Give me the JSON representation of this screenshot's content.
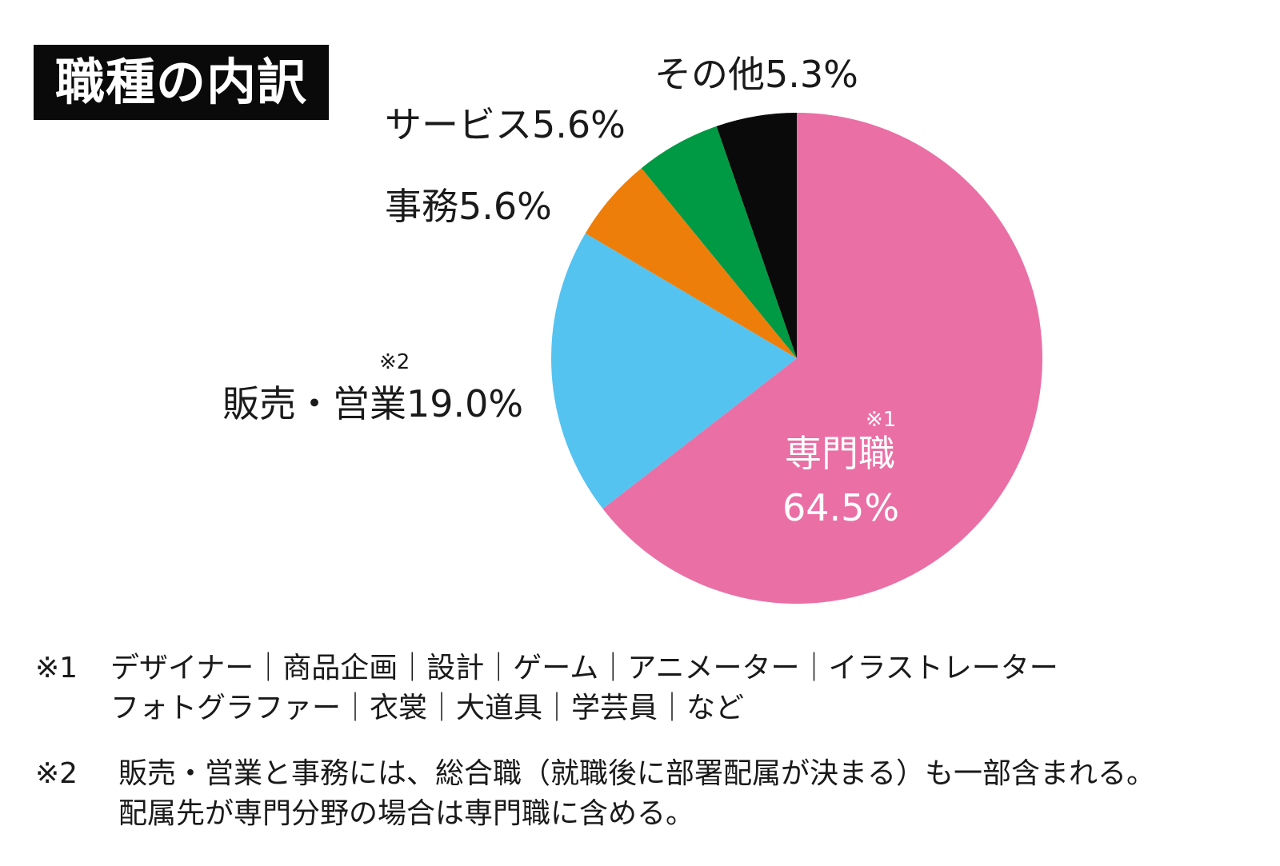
{
  "title": "職種の内訳",
  "chart_data": {
    "type": "pie",
    "title": "職種の内訳",
    "slices": [
      {
        "name": "専門職",
        "value": 64.5,
        "color": "#EA6FA5",
        "label_name": "専門職",
        "label_value": "64.5%",
        "note": "※1"
      },
      {
        "name": "販売・営業",
        "value": 19.0,
        "color": "#55C3F0",
        "label": "販売・営業19.0%",
        "note": "※2"
      },
      {
        "name": "事務",
        "value": 5.6,
        "color": "#EE7E0A",
        "label": "事務5.6%"
      },
      {
        "name": "サービス",
        "value": 5.6,
        "color": "#009944",
        "label": "サービス5.6%"
      },
      {
        "name": "その他",
        "value": 5.3,
        "color": "#0A0A0A",
        "label": "その他5.3%"
      }
    ]
  },
  "footnotes": {
    "n1": {
      "mark": "※1",
      "line1": "デザイナー｜商品企画｜設計｜ゲーム｜アニメーター｜イラストレーター",
      "line2": "フォトグラファー｜衣裳｜大道具｜学芸員｜など"
    },
    "n2": {
      "mark": "※2",
      "line1": "販売・営業と事務には、総合職（就職後に部署配属が決まる）も一部含まれる。",
      "line2": "配属先が専門分野の場合は専門職に含める。"
    }
  }
}
